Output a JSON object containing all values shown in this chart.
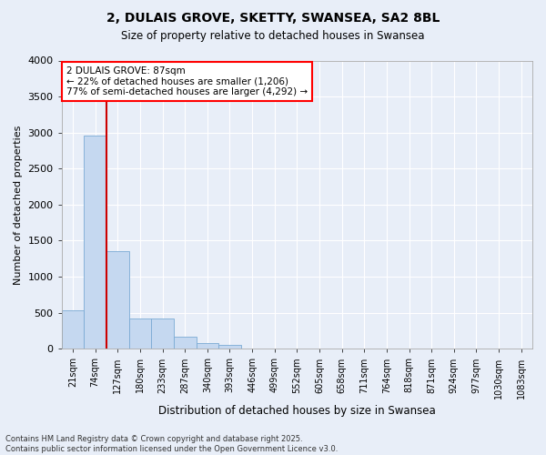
{
  "title": "2, DULAIS GROVE, SKETTY, SWANSEA, SA2 8BL",
  "subtitle": "Size of property relative to detached houses in Swansea",
  "xlabel": "Distribution of detached houses by size in Swansea",
  "ylabel": "Number of detached properties",
  "categories": [
    "21sqm",
    "74sqm",
    "127sqm",
    "180sqm",
    "233sqm",
    "287sqm",
    "340sqm",
    "393sqm",
    "446sqm",
    "499sqm",
    "552sqm",
    "605sqm",
    "658sqm",
    "711sqm",
    "764sqm",
    "818sqm",
    "871sqm",
    "924sqm",
    "977sqm",
    "1030sqm",
    "1083sqm"
  ],
  "values": [
    530,
    2960,
    1350,
    415,
    415,
    165,
    85,
    55,
    0,
    0,
    0,
    0,
    0,
    0,
    0,
    0,
    0,
    0,
    0,
    0,
    0
  ],
  "bar_color": "#c5d8f0",
  "bar_edge_color": "#7aaad4",
  "vline_color": "#cc0000",
  "ylim": [
    0,
    4000
  ],
  "yticks": [
    0,
    500,
    1000,
    1500,
    2000,
    2500,
    3000,
    3500,
    4000
  ],
  "annotation_text": "2 DULAIS GROVE: 87sqm\n← 22% of detached houses are smaller (1,206)\n77% of semi-detached houses are larger (4,292) →",
  "footer": "Contains HM Land Registry data © Crown copyright and database right 2025.\nContains public sector information licensed under the Open Government Licence v3.0.",
  "bg_color": "#e8eef8",
  "plot_bg_color": "#e8eef8",
  "grid_color": "#ffffff"
}
